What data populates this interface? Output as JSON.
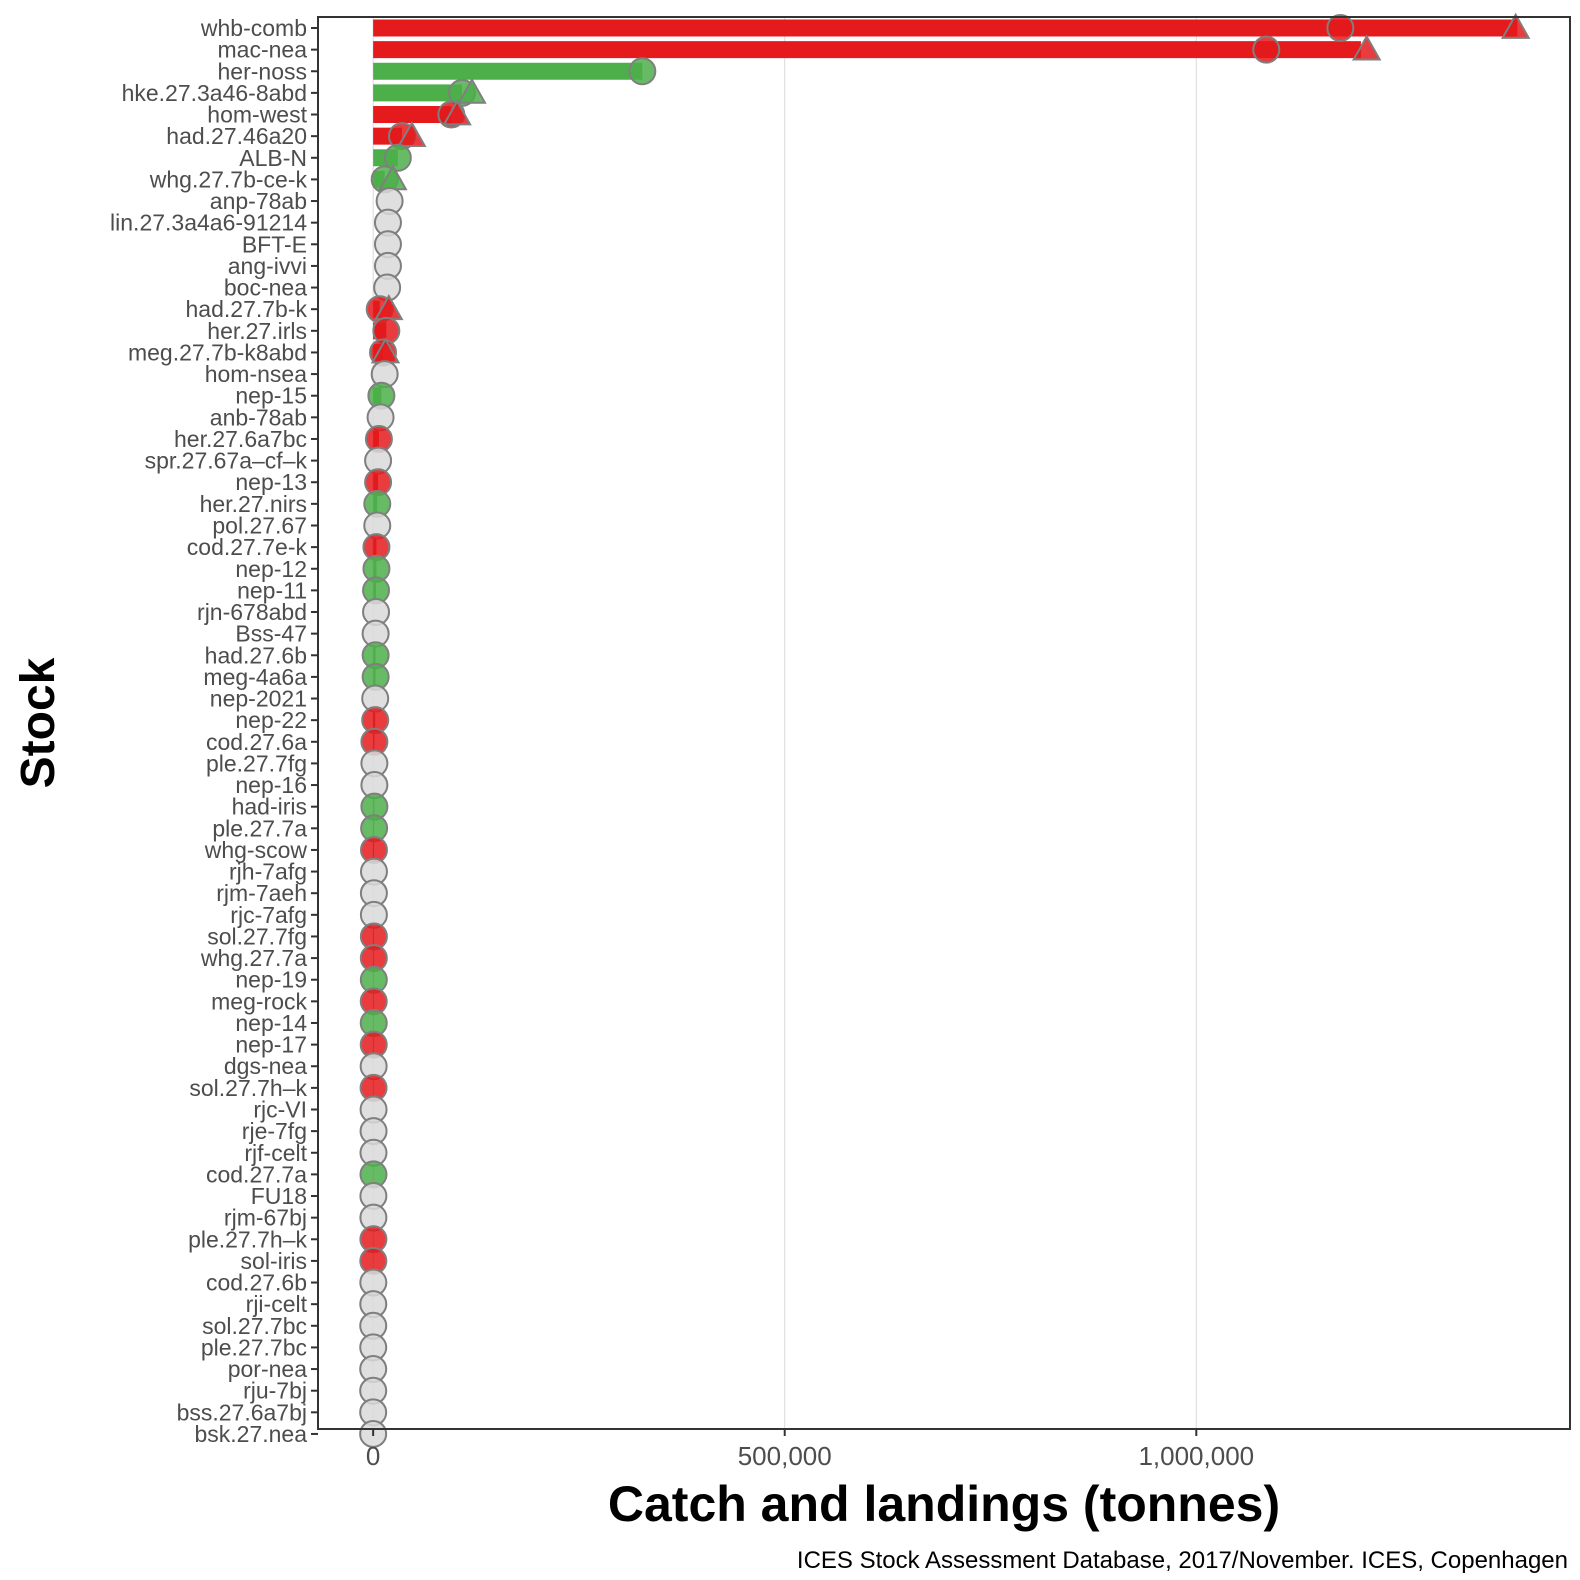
{
  "chart_data": {
    "type": "bar",
    "orientation": "horizontal",
    "xlabel": "Catch and landings (tonnes)",
    "ylabel": "Stock",
    "caption": "ICES Stock Assessment Database, 2017/November. ICES, Copenhagen",
    "xlim": [
      -67000,
      1454000
    ],
    "xticks": [
      0,
      500000,
      1000000
    ],
    "xtick_labels": [
      "0",
      "500,000",
      "1,000,000"
    ],
    "grid": "vertical major gridlines",
    "colors": {
      "red": "#e41a1c",
      "green": "#4daf4a",
      "grey": "#d9d9d9",
      "marker_outline": "#7f7f7f",
      "panel_border": "#333333",
      "gridline": "#d9d9d9"
    },
    "encoding": {
      "bar": "catch",
      "circle": "catch",
      "triangle": "advice"
    },
    "stocks": [
      {
        "name": "whb-comb",
        "status": "red",
        "bar": 1390000,
        "circle": 1175000,
        "triangle": 1388000
      },
      {
        "name": "mac-nea",
        "status": "red",
        "bar": 1200000,
        "circle": 1085000,
        "triangle": 1207000
      },
      {
        "name": "her-noss",
        "status": "green",
        "bar": 327000,
        "circle": 327000,
        "triangle": null
      },
      {
        "name": "hke.27.3a46-8abd",
        "status": "green",
        "bar": 108000,
        "circle": 108000,
        "triangle": 120000
      },
      {
        "name": "hom-west",
        "status": "red",
        "bar": 95000,
        "circle": 95000,
        "triangle": 102000
      },
      {
        "name": "had.27.46a20",
        "status": "red",
        "bar": 35000,
        "circle": 35000,
        "triangle": 47000
      },
      {
        "name": "ALB-N",
        "status": "green",
        "bar": 30000,
        "circle": 30000,
        "triangle": null
      },
      {
        "name": "whg.27.7b-ce-k",
        "status": "green",
        "bar": 14000,
        "circle": 14000,
        "triangle": 24000
      },
      {
        "name": "anp-78ab",
        "status": "grey",
        "bar": null,
        "circle": 20000,
        "triangle": null
      },
      {
        "name": "lin.27.3a4a6-91214",
        "status": "grey",
        "bar": null,
        "circle": 18000,
        "triangle": null
      },
      {
        "name": "BFT-E",
        "status": "grey",
        "bar": null,
        "circle": 18000,
        "triangle": null
      },
      {
        "name": "ang-ivvi",
        "status": "grey",
        "bar": null,
        "circle": 18000,
        "triangle": null
      },
      {
        "name": "boc-nea",
        "status": "grey",
        "bar": null,
        "circle": 17000,
        "triangle": null
      },
      {
        "name": "had.27.7b-k",
        "status": "red",
        "bar": 8000,
        "circle": 8000,
        "triangle": 19000
      },
      {
        "name": "her.27.irls",
        "status": "red",
        "bar": 16000,
        "circle": 16000,
        "triangle": null
      },
      {
        "name": "meg.27.7b-k8abd",
        "status": "red",
        "bar": 12000,
        "circle": 12000,
        "triangle": 15000
      },
      {
        "name": "hom-nsea",
        "status": "grey",
        "bar": null,
        "circle": 14000,
        "triangle": null
      },
      {
        "name": "nep-15",
        "status": "green",
        "bar": 10000,
        "circle": 10000,
        "triangle": null
      },
      {
        "name": "anb-78ab",
        "status": "grey",
        "bar": null,
        "circle": 9000,
        "triangle": null
      },
      {
        "name": "her.27.6a7bc",
        "status": "red",
        "bar": 7000,
        "circle": 7000,
        "triangle": null
      },
      {
        "name": "spr.27.67a–cf–k",
        "status": "grey",
        "bar": null,
        "circle": 6000,
        "triangle": null
      },
      {
        "name": "nep-13",
        "status": "red",
        "bar": 6000,
        "circle": 6000,
        "triangle": null
      },
      {
        "name": "her.27.nirs",
        "status": "green",
        "bar": 5000,
        "circle": 5000,
        "triangle": null
      },
      {
        "name": "pol.27.67",
        "status": "grey",
        "bar": null,
        "circle": 5000,
        "triangle": null
      },
      {
        "name": "cod.27.7e-k",
        "status": "red",
        "bar": 4000,
        "circle": 4000,
        "triangle": null
      },
      {
        "name": "nep-12",
        "status": "green",
        "bar": 4000,
        "circle": 4000,
        "triangle": null
      },
      {
        "name": "nep-11",
        "status": "green",
        "bar": 3500,
        "circle": 3500,
        "triangle": null
      },
      {
        "name": "rjn-678abd",
        "status": "grey",
        "bar": null,
        "circle": 3500,
        "triangle": null
      },
      {
        "name": "Bss-47",
        "status": "grey",
        "bar": null,
        "circle": 3000,
        "triangle": null
      },
      {
        "name": "had.27.6b",
        "status": "green",
        "bar": 3000,
        "circle": 3000,
        "triangle": null
      },
      {
        "name": "meg-4a6a",
        "status": "green",
        "bar": 3000,
        "circle": 3000,
        "triangle": null
      },
      {
        "name": "nep-2021",
        "status": "grey",
        "bar": null,
        "circle": 2500,
        "triangle": null
      },
      {
        "name": "nep-22",
        "status": "red",
        "bar": 2500,
        "circle": 2500,
        "triangle": null
      },
      {
        "name": "cod.27.6a",
        "status": "red",
        "bar": 1500,
        "circle": 1500,
        "triangle": null
      },
      {
        "name": "ple.27.7fg",
        "status": "grey",
        "bar": null,
        "circle": 1500,
        "triangle": null
      },
      {
        "name": "nep-16",
        "status": "grey",
        "bar": null,
        "circle": 1500,
        "triangle": null
      },
      {
        "name": "had-iris",
        "status": "green",
        "bar": 1500,
        "circle": 1500,
        "triangle": null
      },
      {
        "name": "ple.27.7a",
        "status": "green",
        "bar": 1200,
        "circle": 1200,
        "triangle": null
      },
      {
        "name": "whg-scow",
        "status": "red",
        "bar": 1000,
        "circle": 1000,
        "triangle": null
      },
      {
        "name": "rjh-7afg",
        "status": "grey",
        "bar": null,
        "circle": 1000,
        "triangle": null
      },
      {
        "name": "rjm-7aeh",
        "status": "grey",
        "bar": null,
        "circle": 900,
        "triangle": null
      },
      {
        "name": "rjc-7afg",
        "status": "grey",
        "bar": null,
        "circle": 900,
        "triangle": null
      },
      {
        "name": "sol.27.7fg",
        "status": "red",
        "bar": 900,
        "circle": 900,
        "triangle": null
      },
      {
        "name": "whg.27.7a",
        "status": "red",
        "bar": 800,
        "circle": 800,
        "triangle": null
      },
      {
        "name": "nep-19",
        "status": "green",
        "bar": 800,
        "circle": 800,
        "triangle": null
      },
      {
        "name": "meg-rock",
        "status": "red",
        "bar": 700,
        "circle": 700,
        "triangle": null
      },
      {
        "name": "nep-14",
        "status": "green",
        "bar": 700,
        "circle": 700,
        "triangle": null
      },
      {
        "name": "nep-17",
        "status": "red",
        "bar": 700,
        "circle": 700,
        "triangle": null
      },
      {
        "name": "dgs-nea",
        "status": "grey",
        "bar": null,
        "circle": 600,
        "triangle": null
      },
      {
        "name": "sol.27.7h–k",
        "status": "red",
        "bar": 500,
        "circle": 500,
        "triangle": null
      },
      {
        "name": "rjc-VI",
        "status": "grey",
        "bar": null,
        "circle": 500,
        "triangle": null
      },
      {
        "name": "rje-7fg",
        "status": "grey",
        "bar": null,
        "circle": 500,
        "triangle": null
      },
      {
        "name": "rjf-celt",
        "status": "grey",
        "bar": null,
        "circle": 400,
        "triangle": null
      },
      {
        "name": "cod.27.7a",
        "status": "green",
        "bar": 400,
        "circle": 400,
        "triangle": null
      },
      {
        "name": "FU18",
        "status": "grey",
        "bar": null,
        "circle": 300,
        "triangle": null
      },
      {
        "name": "rjm-67bj",
        "status": "grey",
        "bar": null,
        "circle": 300,
        "triangle": null
      },
      {
        "name": "ple.27.7h–k",
        "status": "red",
        "bar": 300,
        "circle": 300,
        "triangle": null
      },
      {
        "name": "sol-iris",
        "status": "red",
        "bar": 200,
        "circle": 200,
        "triangle": null
      },
      {
        "name": "cod.27.6b",
        "status": "grey",
        "bar": null,
        "circle": 200,
        "triangle": null
      },
      {
        "name": "rji-celt",
        "status": "grey",
        "bar": null,
        "circle": 150,
        "triangle": null
      },
      {
        "name": "sol.27.7bc",
        "status": "grey",
        "bar": null,
        "circle": 100,
        "triangle": null
      },
      {
        "name": "ple.27.7bc",
        "status": "grey",
        "bar": null,
        "circle": 100,
        "triangle": null
      },
      {
        "name": "por-nea",
        "status": "grey",
        "bar": null,
        "circle": 50,
        "triangle": null
      },
      {
        "name": "rju-7bj",
        "status": "grey",
        "bar": null,
        "circle": 50,
        "triangle": null
      },
      {
        "name": "bss.27.6a7bj",
        "status": "grey",
        "bar": null,
        "circle": 30,
        "triangle": null
      },
      {
        "name": "bsk.27.nea",
        "status": "grey",
        "bar": null,
        "circle": 0,
        "triangle": null
      }
    ]
  }
}
